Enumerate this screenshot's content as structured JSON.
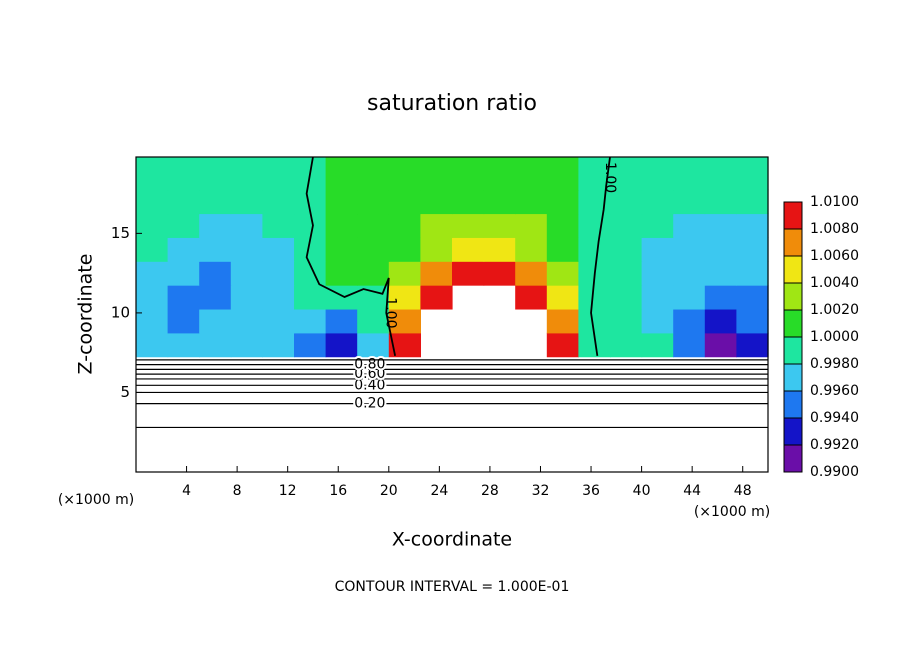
{
  "chart_data": {
    "type": "contour",
    "title": "saturation ratio",
    "xlabel": "X-coordinate",
    "ylabel": "Z-coordinate",
    "x_unit": "(×1000 m)",
    "footnote": "CONTOUR INTERVAL = 1.000E-01",
    "xlim": [
      0,
      50
    ],
    "xticks": [
      4,
      8,
      12,
      16,
      20,
      24,
      28,
      32,
      36,
      40,
      44,
      48
    ],
    "ylim": [
      0,
      19.8
    ],
    "yticks": [
      5,
      10,
      15
    ],
    "field": {
      "x": [
        1.25,
        3.75,
        6.25,
        8.75,
        11.25,
        13.75,
        16.25,
        18.75,
        21.25,
        23.75,
        26.25,
        28.75,
        31.25,
        33.75,
        36.25,
        38.75,
        41.25,
        43.75,
        46.25,
        48.75
      ],
      "z": [
        8.0,
        9.5,
        11.0,
        12.5,
        14.0,
        15.5,
        17.0,
        18.5
      ],
      "values": [
        [
          0.9975,
          0.997,
          0.997,
          0.997,
          0.9975,
          0.995,
          0.9925,
          0.996,
          1.009,
          null,
          null,
          null,
          null,
          1.008,
          0.999,
          0.9985,
          0.998,
          0.994,
          0.991,
          0.993
        ],
        [
          0.997,
          0.9955,
          0.996,
          0.9965,
          0.997,
          0.996,
          0.995,
          0.998,
          1.007,
          null,
          null,
          null,
          null,
          1.006,
          0.9995,
          0.9985,
          0.9975,
          0.995,
          0.993,
          0.994
        ],
        [
          0.997,
          0.995,
          0.9955,
          0.996,
          0.9965,
          0.998,
          0.999,
          0.9995,
          1.004,
          1.009,
          null,
          null,
          1.009,
          1.004,
          0.9995,
          0.998,
          0.997,
          0.996,
          0.994,
          0.9955
        ],
        [
          0.9975,
          0.996,
          0.9955,
          0.996,
          0.997,
          0.999,
          1.0,
          1.0,
          1.002,
          1.006,
          1.009,
          1.009,
          1.006,
          1.002,
          0.9995,
          0.998,
          0.997,
          0.9965,
          0.996,
          0.9965
        ],
        [
          0.998,
          0.997,
          0.9965,
          0.9965,
          0.9975,
          0.9995,
          1.0,
          1.0,
          1.001,
          1.003,
          1.005,
          1.005,
          1.003,
          1.001,
          0.9995,
          0.998,
          0.9975,
          0.997,
          0.9965,
          0.997
        ],
        [
          0.9985,
          0.998,
          0.9975,
          0.9975,
          0.998,
          0.9995,
          1.0,
          1.0,
          1.0005,
          1.002,
          1.003,
          1.003,
          1.002,
          1.0005,
          0.9995,
          0.9985,
          0.998,
          0.9975,
          0.997,
          0.9975
        ],
        [
          0.999,
          0.9985,
          0.9985,
          0.9985,
          0.999,
          0.9995,
          1.0,
          1.0,
          1.0,
          1.001,
          1.0015,
          1.0015,
          1.001,
          1.0,
          0.9995,
          0.999,
          0.9985,
          0.998,
          0.998,
          0.9985
        ],
        [
          0.9995,
          0.999,
          0.999,
          0.999,
          0.9995,
          0.9995,
          1.0,
          1.0,
          1.0,
          1.0005,
          1.001,
          1.001,
          1.0005,
          1.0,
          0.9995,
          0.9995,
          0.999,
          0.999,
          0.9985,
          0.999
        ]
      ]
    },
    "colorbar": {
      "lim": [
        0.99,
        1.01
      ],
      "ticks": [
        {
          "value": 0.99,
          "label": "0.9900"
        },
        {
          "value": 0.992,
          "label": "0.9920"
        },
        {
          "value": 0.994,
          "label": "0.9940"
        },
        {
          "value": 0.996,
          "label": "0.9960"
        },
        {
          "value": 0.998,
          "label": "0.9980"
        },
        {
          "value": 1.0,
          "label": "1.0000"
        },
        {
          "value": 1.002,
          "label": "1.0020"
        },
        {
          "value": 1.004,
          "label": "1.0040"
        },
        {
          "value": 1.006,
          "label": "1.0060"
        },
        {
          "value": 1.008,
          "label": "1.0080"
        },
        {
          "value": 1.01,
          "label": "1.0100"
        }
      ],
      "colors": [
        "#6a0ea8",
        "#1414c8",
        "#1e78f0",
        "#3cc8f0",
        "#1ee6a0",
        "#28dc28",
        "#a0e614",
        "#f0e614",
        "#f08c0a",
        "#e61414"
      ]
    },
    "contours": [
      {
        "level": 0.1,
        "x": [
          0,
          50
        ],
        "z": [
          2.8,
          2.8
        ]
      },
      {
        "level": 0.2,
        "label": "0.20",
        "x": [
          0,
          50
        ],
        "z": [
          4.3,
          4.3
        ]
      },
      {
        "level": 0.3,
        "x": [
          0,
          50
        ],
        "z": [
          5.0,
          5.0
        ]
      },
      {
        "level": 0.4,
        "label": "0.40",
        "x": [
          0,
          50
        ],
        "z": [
          5.45,
          5.45
        ]
      },
      {
        "level": 0.5,
        "x": [
          0,
          50
        ],
        "z": [
          5.85,
          5.85
        ]
      },
      {
        "level": 0.6,
        "label": "0.60",
        "x": [
          0,
          50
        ],
        "z": [
          6.15,
          6.15
        ]
      },
      {
        "level": 0.7,
        "x": [
          0,
          50
        ],
        "z": [
          6.45,
          6.45
        ]
      },
      {
        "level": 0.8,
        "label": "0.80",
        "x": [
          0,
          50
        ],
        "z": [
          6.75,
          6.75
        ]
      },
      {
        "level": 0.9,
        "x": [
          0,
          50
        ],
        "z": [
          7.05,
          7.05
        ]
      },
      {
        "level": 1.0,
        "label": "1.00",
        "x": [
          20.5,
          19.8,
          20.0,
          19.5,
          18.0,
          16.5,
          14.5,
          13.5,
          14.0,
          13.5,
          14.0
        ],
        "z": [
          7.3,
          10.0,
          12.2,
          11.2,
          11.5,
          11.0,
          11.8,
          13.5,
          15.5,
          17.5,
          19.8
        ]
      },
      {
        "level": 1.0,
        "label": "1.00",
        "x": [
          36.5,
          36.0,
          36.3,
          36.6,
          37.0,
          37.2,
          37.5
        ],
        "z": [
          7.3,
          10.0,
          12.5,
          14.5,
          16.5,
          18.0,
          19.8
        ]
      }
    ]
  }
}
